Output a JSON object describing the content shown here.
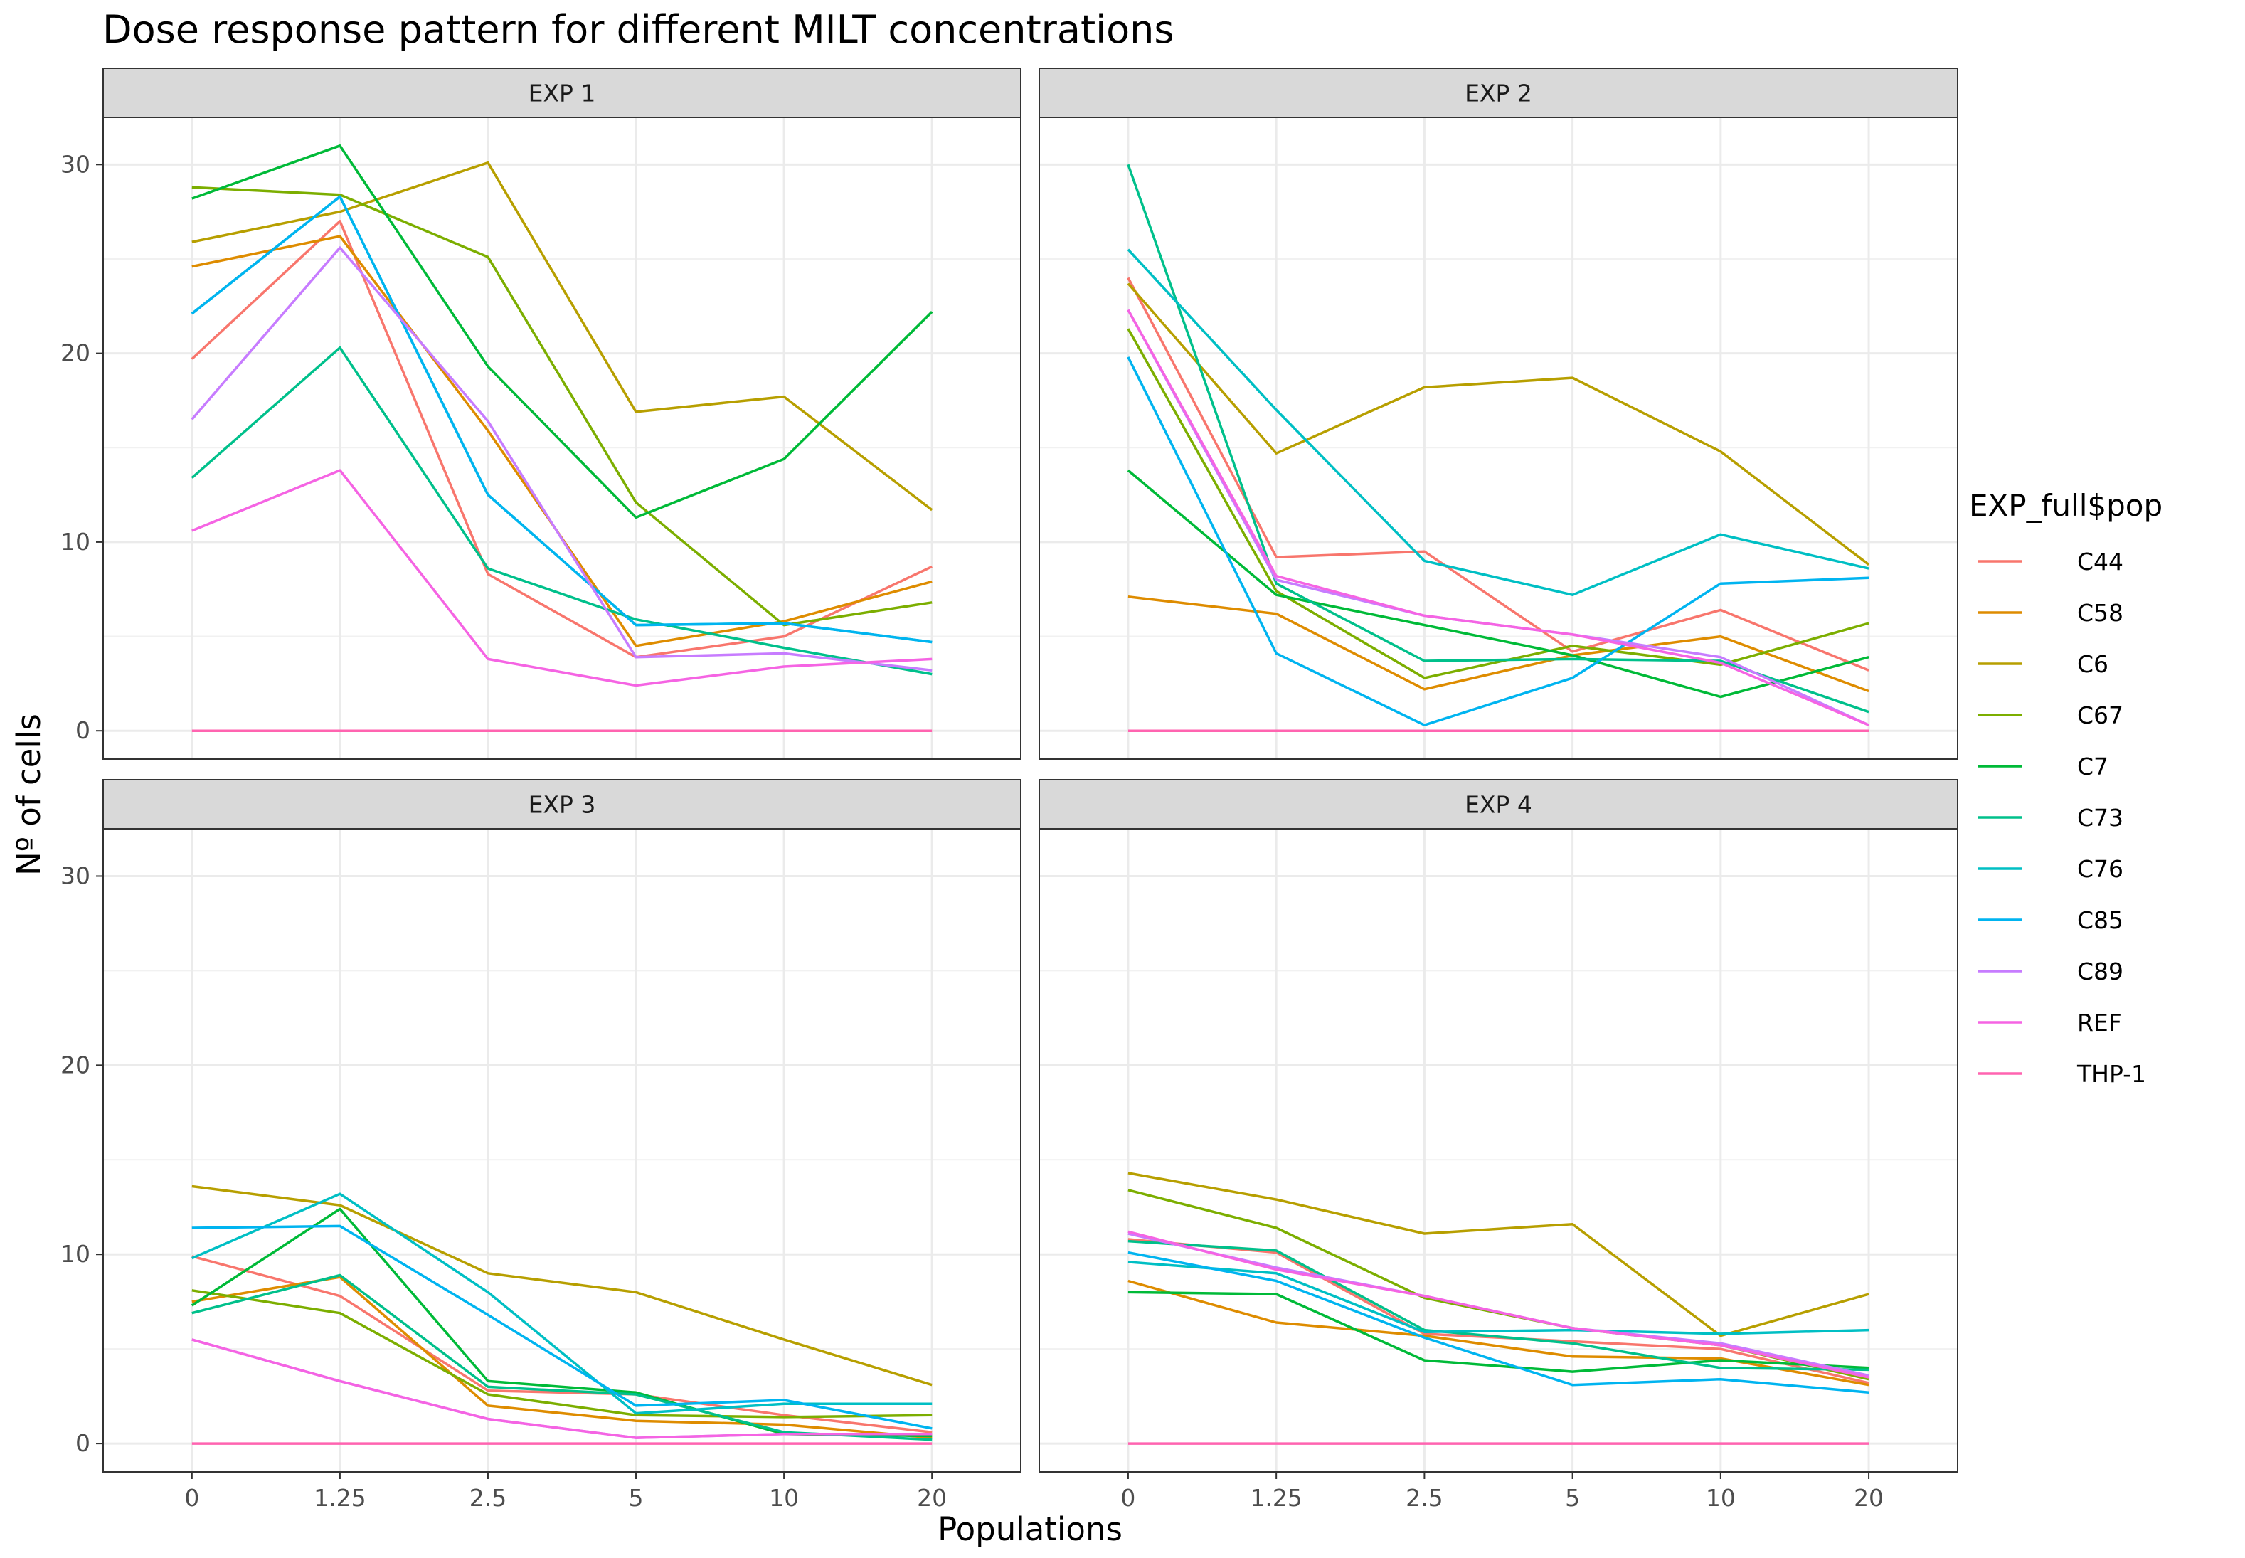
{
  "chart_data": {
    "type": "line",
    "title": "Dose response pattern for different MILT concentrations",
    "xlabel": "Populations",
    "ylabel": "Nº of cells",
    "categories": [
      "0",
      "1.25",
      "2.5",
      "5",
      "10",
      "20"
    ],
    "ylim": [
      -1.5,
      32.5
    ],
    "yticks": [
      0,
      10,
      20,
      30
    ],
    "grid": true,
    "legend": {
      "title": "EXP_full$pop",
      "position": "right",
      "entries": [
        "C44",
        "C58",
        "C6",
        "C67",
        "C7",
        "C73",
        "C76",
        "C85",
        "C89",
        "REF",
        "THP-1"
      ]
    },
    "colors": {
      "C44": "#F8766D",
      "C58": "#DE8C00",
      "C6": "#B79F00",
      "C67": "#7CAE00",
      "C7": "#00BA38",
      "C73": "#00C08B",
      "C76": "#00BFC4",
      "C85": "#00B4F0",
      "C89": "#C77CFF",
      "REF": "#F564E3",
      "THP-1": "#FF64B0"
    },
    "panels": [
      {
        "label": "EXP 1",
        "series": [
          {
            "name": "C44",
            "values": [
              19.7,
              27.0,
              8.3,
              3.9,
              5.0,
              8.7
            ]
          },
          {
            "name": "C58",
            "values": [
              24.6,
              26.2,
              15.9,
              4.5,
              5.8,
              7.9
            ]
          },
          {
            "name": "C6",
            "values": [
              25.9,
              27.5,
              30.1,
              16.9,
              17.7,
              11.7
            ]
          },
          {
            "name": "C67",
            "values": [
              28.8,
              28.4,
              25.1,
              12.1,
              5.6,
              6.8
            ]
          },
          {
            "name": "C7",
            "values": [
              28.2,
              31.0,
              19.3,
              11.3,
              14.4,
              22.2
            ]
          },
          {
            "name": "C73",
            "values": [
              13.4,
              20.3,
              8.6,
              5.9,
              4.4,
              3.0
            ]
          },
          {
            "name": "C76",
            "values": [
              22.1,
              28.3,
              12.5,
              5.6,
              5.7,
              4.7
            ]
          },
          {
            "name": "C85",
            "values": [
              22.1,
              28.3,
              12.5,
              5.6,
              5.7,
              4.7
            ]
          },
          {
            "name": "C89",
            "values": [
              16.5,
              25.6,
              16.4,
              3.9,
              4.1,
              3.2
            ]
          },
          {
            "name": "REF",
            "values": [
              10.6,
              13.8,
              3.8,
              2.4,
              3.4,
              3.8
            ]
          },
          {
            "name": "THP-1",
            "values": [
              0,
              0,
              0,
              0,
              0,
              0
            ]
          }
        ]
      },
      {
        "label": "EXP 2",
        "series": [
          {
            "name": "C44",
            "values": [
              24.0,
              9.2,
              9.5,
              4.2,
              6.4,
              3.2
            ]
          },
          {
            "name": "C58",
            "values": [
              7.1,
              6.2,
              2.2,
              4.0,
              5.0,
              2.1
            ]
          },
          {
            "name": "C6",
            "values": [
              23.7,
              14.7,
              18.2,
              18.7,
              14.8,
              8.8
            ]
          },
          {
            "name": "C67",
            "values": [
              21.3,
              7.4,
              2.8,
              4.5,
              3.5,
              5.7
            ]
          },
          {
            "name": "C7",
            "values": [
              13.8,
              7.2,
              5.6,
              4.0,
              1.8,
              3.9
            ]
          },
          {
            "name": "C73",
            "values": [
              30.0,
              7.8,
              3.7,
              3.8,
              3.7,
              1.0
            ]
          },
          {
            "name": "C76",
            "values": [
              25.5,
              17.0,
              9.0,
              7.2,
              10.4,
              8.6
            ]
          },
          {
            "name": "C85",
            "values": [
              19.8,
              4.1,
              0.3,
              2.8,
              7.8,
              8.1
            ]
          },
          {
            "name": "C89",
            "values": [
              22.3,
              8.0,
              6.1,
              5.1,
              3.9,
              0.3
            ]
          },
          {
            "name": "REF",
            "values": [
              22.3,
              8.2,
              6.1,
              5.1,
              3.6,
              0.3
            ]
          },
          {
            "name": "THP-1",
            "values": [
              0,
              0,
              0,
              0,
              0,
              0
            ]
          }
        ]
      },
      {
        "label": "EXP 3",
        "series": [
          {
            "name": "C44",
            "values": [
              9.9,
              7.8,
              2.8,
              2.6,
              1.5,
              0.6
            ]
          },
          {
            "name": "C58",
            "values": [
              7.5,
              8.8,
              2.0,
              1.2,
              1.0,
              0.3
            ]
          },
          {
            "name": "C6",
            "values": [
              13.6,
              12.6,
              9.0,
              8.0,
              5.5,
              3.1
            ]
          },
          {
            "name": "C67",
            "values": [
              8.1,
              6.9,
              2.6,
              1.5,
              1.4,
              1.5
            ]
          },
          {
            "name": "C7",
            "values": [
              7.3,
              12.4,
              3.3,
              2.7,
              0.5,
              0.4
            ]
          },
          {
            "name": "C73",
            "values": [
              6.9,
              8.9,
              3.0,
              2.6,
              0.6,
              0.2
            ]
          },
          {
            "name": "C76",
            "values": [
              9.8,
              13.2,
              8.0,
              1.6,
              2.1,
              2.1
            ]
          },
          {
            "name": "C85",
            "values": [
              11.4,
              11.5,
              6.8,
              2.0,
              2.3,
              0.8
            ]
          },
          {
            "name": "C89",
            "values": [
              5.5,
              3.3,
              1.3,
              0.3,
              0.5,
              0.5
            ]
          },
          {
            "name": "REF",
            "values": [
              5.5,
              3.3,
              1.3,
              0.3,
              0.5,
              0.5
            ]
          },
          {
            "name": "THP-1",
            "values": [
              0,
              0,
              0,
              0,
              0,
              0
            ]
          }
        ]
      },
      {
        "label": "EXP 4",
        "series": [
          {
            "name": "C44",
            "values": [
              10.8,
              10.1,
              5.8,
              5.4,
              5.0,
              3.2
            ]
          },
          {
            "name": "C58",
            "values": [
              8.6,
              6.4,
              5.7,
              4.6,
              4.5,
              3.1
            ]
          },
          {
            "name": "C6",
            "values": [
              14.3,
              12.9,
              11.1,
              11.6,
              5.7,
              7.9
            ]
          },
          {
            "name": "C67",
            "values": [
              13.4,
              11.4,
              7.7,
              6.1,
              5.2,
              3.4
            ]
          },
          {
            "name": "C7",
            "values": [
              8.0,
              7.9,
              4.4,
              3.8,
              4.4,
              4.0
            ]
          },
          {
            "name": "C73",
            "values": [
              10.7,
              10.2,
              6.0,
              5.3,
              4.0,
              3.9
            ]
          },
          {
            "name": "C76",
            "values": [
              9.6,
              9.0,
              5.9,
              6.0,
              5.8,
              6.0
            ]
          },
          {
            "name": "C85",
            "values": [
              10.1,
              8.6,
              5.6,
              3.1,
              3.4,
              2.7
            ]
          },
          {
            "name": "C89",
            "values": [
              11.1,
              9.3,
              7.8,
              6.1,
              5.3,
              3.6
            ]
          },
          {
            "name": "REF",
            "values": [
              11.2,
              9.2,
              7.8,
              6.1,
              5.2,
              3.5
            ]
          },
          {
            "name": "THP-1",
            "values": [
              0,
              0,
              0,
              0,
              0,
              0
            ]
          }
        ]
      }
    ]
  }
}
